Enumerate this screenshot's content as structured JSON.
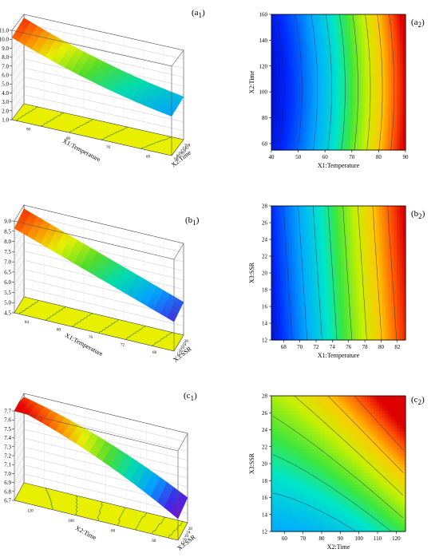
{
  "chart_data": [
    {
      "id": "a1",
      "label": "(a1)",
      "type": "surface",
      "zlabel": "Pectin Yield(%)",
      "xlabel": "X1:Temperature",
      "ylabel": "X2:Time",
      "zticks": [
        "1.0",
        "2.0",
        "3.0",
        "4.0",
        "5.0",
        "6.0",
        "7.0",
        "8.0",
        "9.0",
        "10.0",
        "11.0"
      ],
      "xticks": [
        "90",
        "80",
        "70",
        "60"
      ],
      "yticks": [
        "160",
        "140",
        "120",
        "100",
        "80",
        "60"
      ],
      "zlim": [
        1.0,
        11.0
      ]
    },
    {
      "id": "a2",
      "label": "(a2)",
      "type": "heatmap",
      "xlabel": "X1:Temperature",
      "ylabel": "X2:Time",
      "xticks": [
        "40",
        "50",
        "60",
        "70",
        "80",
        "90"
      ],
      "yticks": [
        "60",
        "80",
        "100",
        "120",
        "140",
        "160"
      ],
      "xlim": [
        40,
        90
      ],
      "ylim": [
        55,
        160
      ]
    },
    {
      "id": "b1",
      "label": "(b1)",
      "type": "surface",
      "zlabel": "Pectin Yield(%)",
      "xlabel": "X1:Temperature",
      "ylabel": "X3:SSR",
      "zticks": [
        "4.5",
        "5.0",
        "5.5",
        "6.0",
        "6.5",
        "7.0",
        "7.5",
        "8.0",
        "8.5",
        "9.0"
      ],
      "xticks": [
        "84",
        "80",
        "76",
        "72",
        "68"
      ],
      "yticks": [
        "28",
        "24",
        "20",
        "16",
        "12"
      ],
      "zlim": [
        4.5,
        9.0
      ]
    },
    {
      "id": "b2",
      "label": "(b2)",
      "type": "heatmap",
      "xlabel": "X1:Temperature",
      "ylabel": "X3:SSR",
      "xticks": [
        "68",
        "70",
        "72",
        "74",
        "76",
        "78",
        "80",
        "82"
      ],
      "yticks": [
        "12",
        "14",
        "16",
        "18",
        "20",
        "22",
        "24",
        "26",
        "28"
      ],
      "xlim": [
        66.5,
        83
      ],
      "ylim": [
        12,
        28
      ]
    },
    {
      "id": "c1",
      "label": "(c1)",
      "type": "surface",
      "zlabel": "Pectin Yield(%)",
      "xlabel": "X2:Time",
      "ylabel": "X3:SSR",
      "zticks": [
        "6.7",
        "6.8",
        "6.9",
        "7.0",
        "7.1",
        "7.2",
        "7.3",
        "7.4",
        "7.5",
        "7.6",
        "7.7"
      ],
      "xticks": [
        "120",
        "100",
        "80",
        "60"
      ],
      "yticks": [
        "28",
        "24",
        "20",
        "16",
        "12"
      ],
      "zlim": [
        6.7,
        7.7
      ]
    },
    {
      "id": "c2",
      "label": "(c2)",
      "type": "heatmap",
      "xlabel": "X2:Time",
      "ylabel": "X3:SSR",
      "xticks": [
        "60",
        "70",
        "80",
        "90",
        "100",
        "110",
        "120"
      ],
      "yticks": [
        "12",
        "14",
        "16",
        "18",
        "20",
        "22",
        "24",
        "26",
        "28"
      ],
      "xlim": [
        53,
        125
      ],
      "ylim": [
        12,
        28
      ]
    }
  ]
}
